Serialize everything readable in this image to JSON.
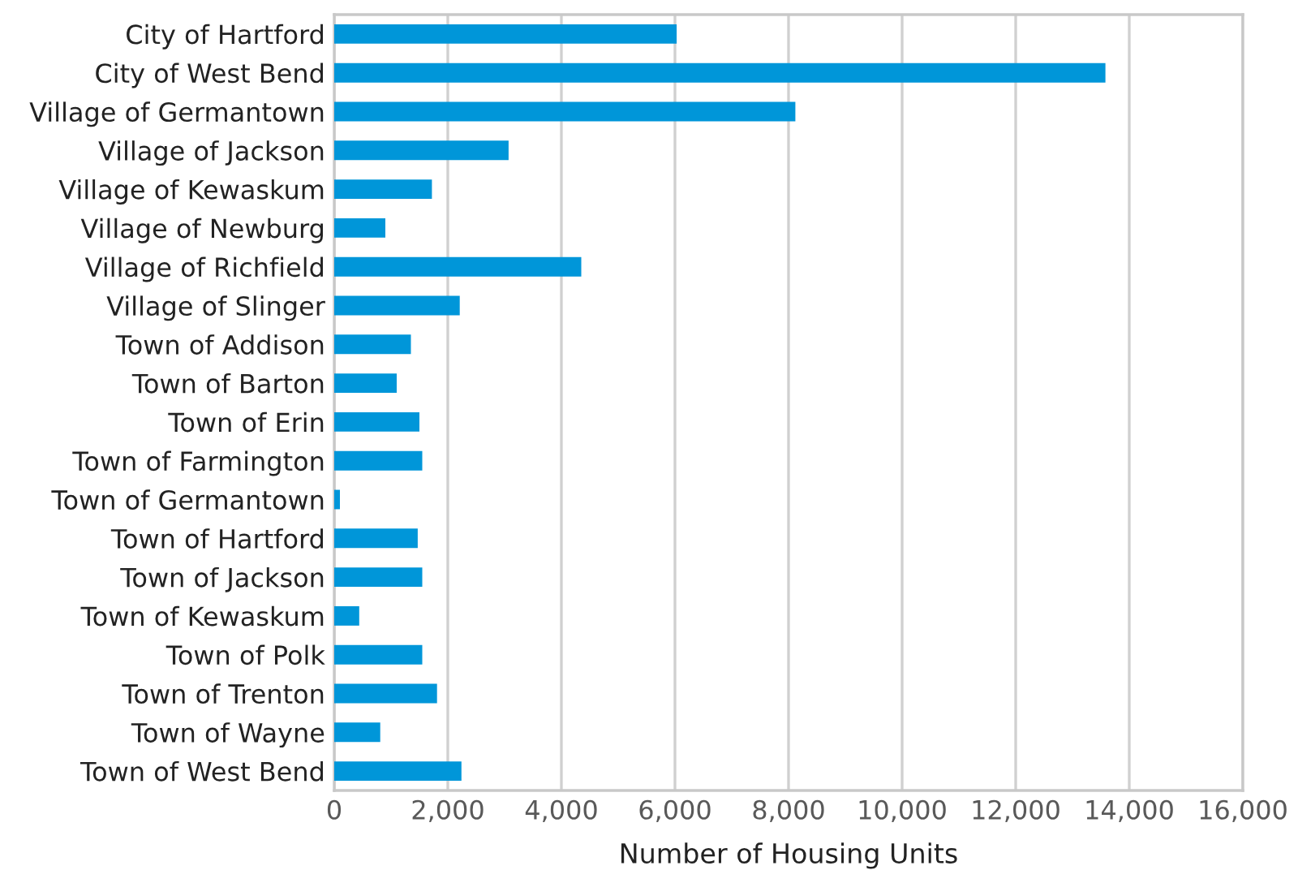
{
  "chart_data": {
    "type": "bar",
    "orientation": "horizontal",
    "xlabel": "Number of Housing Units",
    "categories": [
      "City of Hartford",
      "City of West Bend",
      "Village of Germantown",
      "Village of Jackson",
      "Village of Kewaskum",
      "Village of Newburg",
      "Village of Richfield",
      "Village of Slinger",
      "Town of Addison",
      "Town of Barton",
      "Town of Erin",
      "Town of Farmington",
      "Town of Germantown",
      "Town of Hartford",
      "Town of Jackson",
      "Town of Kewaskum",
      "Town of Polk",
      "Town of Trenton",
      "Town of Wayne",
      "Town of West Bend"
    ],
    "values": [
      6030,
      13580,
      8120,
      3070,
      1720,
      900,
      4350,
      2210,
      1350,
      1100,
      1500,
      1550,
      100,
      1470,
      1550,
      440,
      1550,
      1810,
      810,
      2240
    ],
    "color": "#0096d9",
    "xlim": [
      0,
      16000
    ],
    "xticks": [
      {
        "value": 0,
        "label": "0"
      },
      {
        "value": 2000,
        "label": "2,000"
      },
      {
        "value": 4000,
        "label": "4,000"
      },
      {
        "value": 6000,
        "label": "6,000"
      },
      {
        "value": 8000,
        "label": "8,000"
      },
      {
        "value": 10000,
        "label": "10,000"
      },
      {
        "value": 12000,
        "label": "12,000"
      },
      {
        "value": 14000,
        "label": "14,000"
      },
      {
        "value": 16000,
        "label": "16,000"
      }
    ],
    "grid": "x"
  }
}
